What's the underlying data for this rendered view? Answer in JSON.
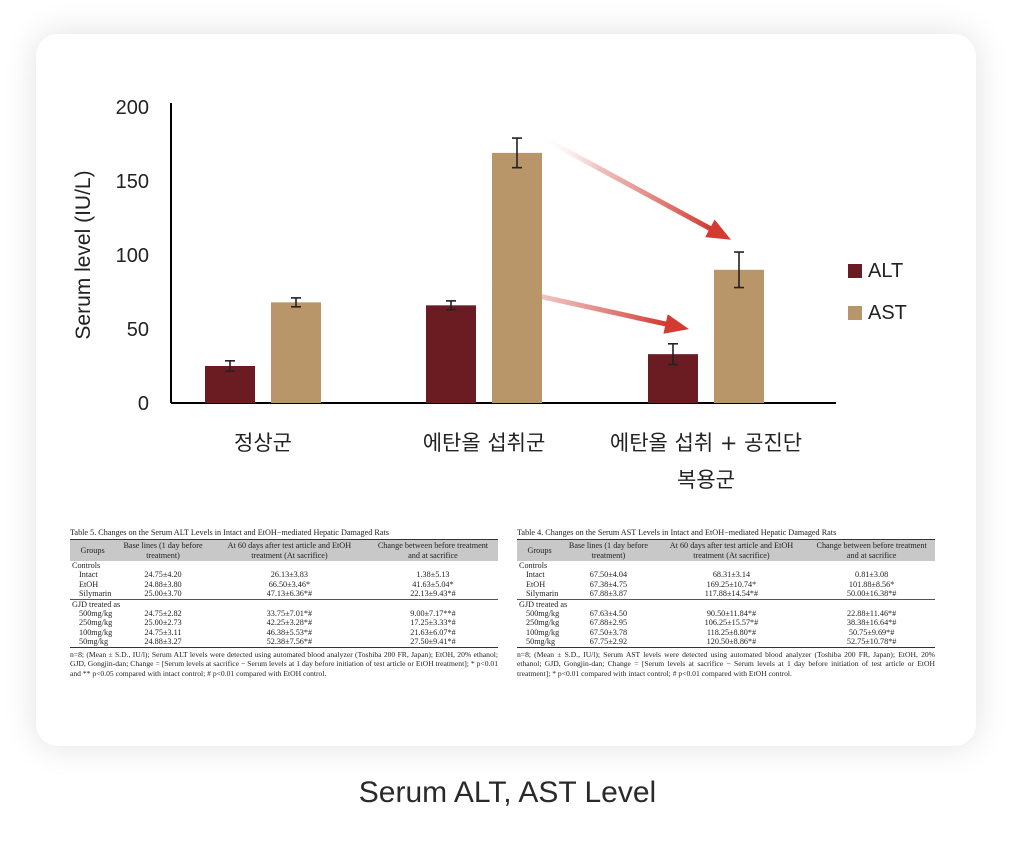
{
  "chart_data": {
    "type": "bar",
    "ylabel": "Serum level (IU/L)",
    "yticks": [
      "200",
      "150",
      "100",
      "50",
      "0"
    ],
    "ylim": [
      0,
      200
    ],
    "categories": [
      "정상군",
      "에탄올 섭취군",
      "에탄올 섭취 + 공진단 복용군"
    ],
    "category_lines": [
      [
        "정상군"
      ],
      [
        "에탄올 섭취군"
      ],
      [
        "에탄올 섭취 + 공진단",
        "복용군"
      ]
    ],
    "series": [
      {
        "name": "ALT",
        "values": [
          25,
          66,
          33
        ],
        "errors": [
          3.5,
          3,
          7
        ],
        "color": "#6b1c22"
      },
      {
        "name": "AST",
        "values": [
          68,
          169,
          90
        ],
        "errors": [
          3,
          10,
          12
        ],
        "color": "#b8966a"
      }
    ],
    "legend_position": "right",
    "arrow_color": "#d23a32"
  },
  "tables": [
    {
      "caption": "Table 5. Changes on the Serum ALT Levels in Intact and EtOH−mediated Hepatic Damaged Rats",
      "headers": [
        "Groups",
        "Base lines (1 day before treatment)",
        "At 60 days after test article and EtOH treatment (At sacrifice)",
        "Change between before treatment and at sacrifice"
      ],
      "section1": "Controls",
      "section2": "GJD treated as",
      "rows": [
        [
          "Intact",
          "24.75±4.20",
          "26.13±3.83",
          "1.38±5.13"
        ],
        [
          "EtOH",
          "24.88±3.80",
          "66.50±3.46*",
          "41.63±5.04*"
        ],
        [
          "Silymarin",
          "25.00±3.70",
          "47.13±6.36*#",
          "22.13±9.43*#"
        ],
        [
          "500mg/kg",
          "24.75±2.82",
          "33.75±7.01*#",
          "9.00±7.17**#"
        ],
        [
          "250mg/kg",
          "25.00±2.73",
          "42.25±3.28*#",
          "17.25±3.33*#"
        ],
        [
          "100mg/kg",
          "24.75±3.11",
          "46.38±5.53*#",
          "21.63±6.07*#"
        ],
        [
          "50mg/kg",
          "24.88±3.27",
          "52.38±7.56*#",
          "27.50±9.41*#"
        ]
      ],
      "note": "n=8; (Mean ± S.D., IU/l); Serum ALT levels were detected using automated blood analyzer (Toshiba 200 FR, Japan); EtOH, 20% ethanol; GJD, Gongjin-dan; Change = [Serum levels at sacrifice − Serum levels at 1 day before initiation of test article or EtOH treatment]; * p<0.01 and ** p<0.05 compared with intact control; # p<0.01 compared with EtOH control."
    },
    {
      "caption": "Table 4. Changes on the Serum AST Levels in Intact and EtOH−mediated Hepatic Damaged Rats",
      "headers": [
        "Groups",
        "Base lines (1 day before treatment)",
        "At 60 days after test article and EtOH treatment (At sacrifice)",
        "Change between before treatment and at sacrifice"
      ],
      "section1": "Controls",
      "section2": "GJD treated as",
      "rows": [
        [
          "Intact",
          "67.50±4.04",
          "68.31±3.14",
          "0.81±3.08"
        ],
        [
          "EtOH",
          "67.38±4.75",
          "169.25±10.74*",
          "101.88±8.56*"
        ],
        [
          "Silymarin",
          "67.88±3.87",
          "117.88±14.54*#",
          "50.00±16.38*#"
        ],
        [
          "500mg/kg",
          "67.63±4.50",
          "90.50±11.84*#",
          "22.88±11.46*#"
        ],
        [
          "250mg/kg",
          "67.88±2.95",
          "106.25±15.57*#",
          "38.38±16.64*#"
        ],
        [
          "100mg/kg",
          "67.50±3.78",
          "118.25±8.80*#",
          "50.75±9.69*#"
        ],
        [
          "50mg/kg",
          "67.75±2.92",
          "120.50±8.86*#",
          "52.75±10.78*#"
        ]
      ],
      "note": "n=8; (Mean ± S.D., IU/l); Serum AST levels were detected using automated blood analyzer (Toshiba 200 FR, Japan); EtOH, 20% ethanol; GJD, Gongjin-dan; Change = [Serum levels at sacrifice − Serum levels at 1 day before initiation of test article or EtOH treatment]; * p<0.01 compared with intact control; # p<0.01 compared with EtOH control."
    }
  ],
  "footer_title": "Serum ALT, AST Level"
}
